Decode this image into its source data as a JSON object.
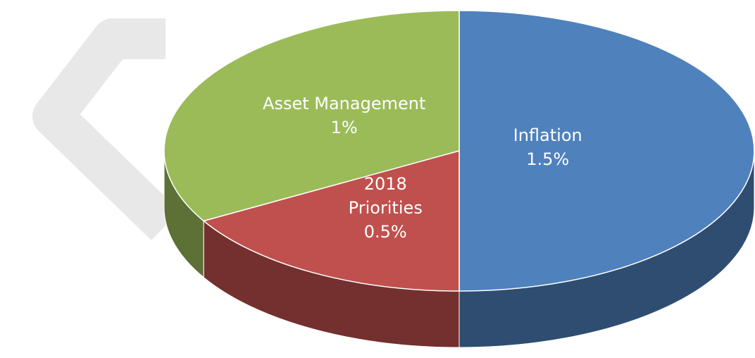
{
  "chart_data": {
    "type": "pie",
    "categories": [
      "Inflation",
      "2018 Priorities",
      "Asset Management"
    ],
    "values": [
      1.5,
      0.5,
      1
    ],
    "value_labels": [
      "1.5%",
      "0.5%",
      "1%"
    ],
    "colors": [
      "#4f81bd",
      "#c0504d",
      "#9bbb59"
    ]
  }
}
